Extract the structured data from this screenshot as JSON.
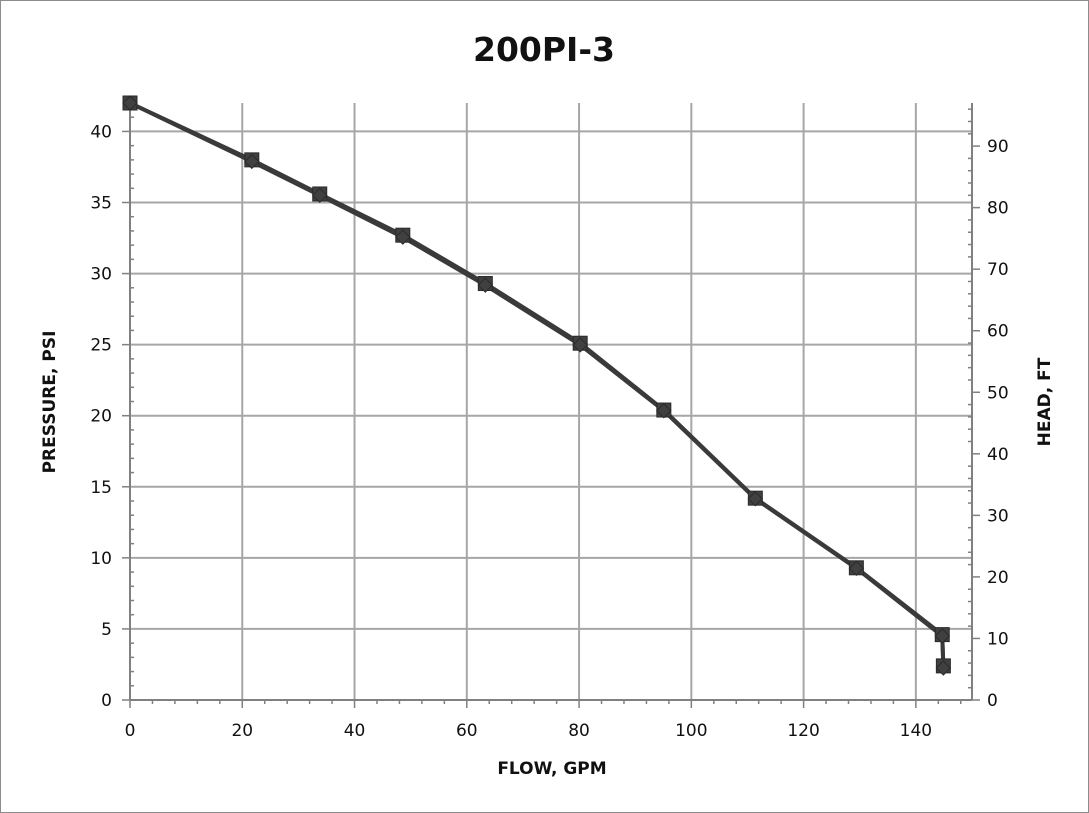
{
  "chart_data": {
    "type": "line",
    "title": "200PI-3",
    "xlabel": "FLOW, GPM",
    "ylabel": "PRESSURE, PSI",
    "y2label": "HEAD, FT",
    "xlim": [
      0,
      150
    ],
    "ylim": [
      0,
      42
    ],
    "y2lim": [
      0,
      97
    ],
    "xticks": [
      0,
      20,
      40,
      60,
      80,
      100,
      120,
      140
    ],
    "yticks": [
      0,
      5,
      10,
      15,
      20,
      25,
      30,
      35,
      40
    ],
    "y2ticks": [
      0,
      10,
      20,
      30,
      40,
      50,
      60,
      70,
      80,
      90
    ],
    "grid": true,
    "legend": "none",
    "colors": {
      "line": "#3a3a3a",
      "marker": "#404040",
      "grid": "#a6a6a6",
      "axis": "#808080"
    },
    "series": [
      {
        "axis": "left",
        "marker": "square",
        "x": [
          0,
          21.7,
          33.8,
          48.6,
          63.3,
          80.2,
          95.1,
          111.4,
          129.4,
          144.7,
          144.9
        ],
        "y": [
          42.0,
          38.0,
          35.6,
          32.7,
          29.3,
          25.1,
          20.4,
          14.2,
          9.3,
          4.6,
          2.4
        ]
      },
      {
        "axis": "right",
        "marker": "diamond",
        "x": [
          0,
          21.7,
          33.8,
          48.6,
          63.3,
          80.2,
          95.1,
          111.4,
          129.4,
          144.7,
          144.9
        ],
        "y": [
          97.0,
          87.5,
          82.0,
          75.2,
          67.4,
          57.7,
          47.0,
          32.7,
          21.4,
          10.4,
          5.2
        ]
      }
    ]
  }
}
